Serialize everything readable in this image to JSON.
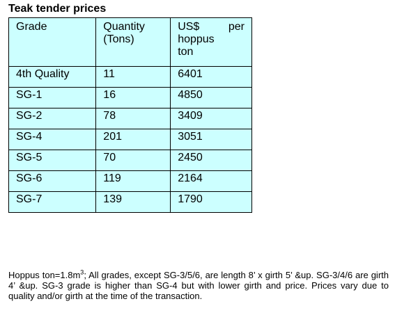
{
  "title": "Teak tender prices",
  "table": {
    "headers": {
      "grade": "Grade",
      "quantity_line1": "Quantity",
      "quantity_line2": "(Tons)",
      "usd_word": "US$",
      "usd_per": "per",
      "usd_line2": "hoppus",
      "usd_line3": "ton"
    },
    "rows": [
      {
        "grade": "4th Quality",
        "quantity": "11",
        "price": "6401"
      },
      {
        "grade": "SG-1",
        "quantity": "16",
        "price": "4850"
      },
      {
        "grade": "SG-2",
        "quantity": "78",
        "price": "3409"
      },
      {
        "grade": "SG-4",
        "quantity": "201",
        "price": "3051"
      },
      {
        "grade": "SG-5",
        "quantity": "70",
        "price": "2450"
      },
      {
        "grade": "SG-6",
        "quantity": "119",
        "price": "2164"
      },
      {
        "grade": "SG-7",
        "quantity": "139",
        "price": "1790"
      }
    ],
    "background": "#ccffff"
  },
  "note": {
    "prefix": "Hoppus ton=1.8m",
    "superscript": "3",
    "rest": "; All grades, except SG-3/5/6, are length 8’ x girth 5’ &up. SG-3/4/6 are girth 4’ &up. SG-3 grade is higher than SG-4 but with lower girth and price. Prices vary due to quality and/or girth at the time of the transaction."
  }
}
